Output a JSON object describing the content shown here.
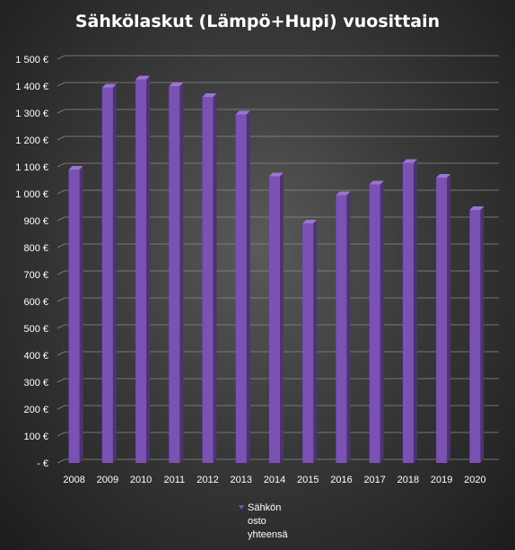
{
  "chart_data": {
    "type": "bar",
    "title": "Sähkölaskut (Lämpö+Hupi) vuosittain",
    "categories": [
      "2008",
      "2009",
      "2010",
      "2011",
      "2012",
      "2013",
      "2014",
      "2015",
      "2016",
      "2017",
      "2018",
      "2019",
      "2020"
    ],
    "series": [
      {
        "name": "Sähkön osto yhteensä",
        "values": [
          1090,
          1395,
          1425,
          1400,
          1360,
          1295,
          1065,
          890,
          995,
          1035,
          1115,
          1060,
          940
        ]
      }
    ],
    "ylim": [
      0,
      1500
    ],
    "yticks": [
      "-  €",
      "100 €",
      "200 €",
      "300 €",
      "400 €",
      "500 €",
      "600 €",
      "700 €",
      "800 €",
      "900 €",
      "1 000 €",
      "1 100 €",
      "1 200 €",
      "1 300 €",
      "1 400 €",
      "1 500 €"
    ],
    "legend_lines": [
      "Sähkön",
      "osto",
      "yhteensä"
    ],
    "grid": true,
    "legend_position": "bottom",
    "colors": {
      "bar_front": "#7a52b3",
      "bar_side": "#4e3178",
      "bar_top": "#9b76d0",
      "grid": "#8a8a8a",
      "text": "#ffffff"
    }
  }
}
